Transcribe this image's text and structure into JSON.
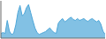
{
  "chart_data": {
    "type": "area",
    "values": [
      10,
      12,
      10,
      38,
      15,
      8,
      10,
      28,
      55,
      70,
      48,
      52,
      65,
      72,
      55,
      38,
      22,
      12,
      8,
      10,
      12,
      14,
      18,
      22,
      16,
      12,
      10,
      32,
      38,
      42,
      35,
      38,
      42,
      45,
      40,
      38,
      42,
      38,
      40,
      42,
      38,
      36,
      40,
      42,
      38,
      35,
      38,
      30,
      15,
      8
    ],
    "color": "#4da6d8",
    "xlim": [
      0,
      49
    ],
    "ylim": [
      0,
      80
    ],
    "tick_labels": false
  }
}
